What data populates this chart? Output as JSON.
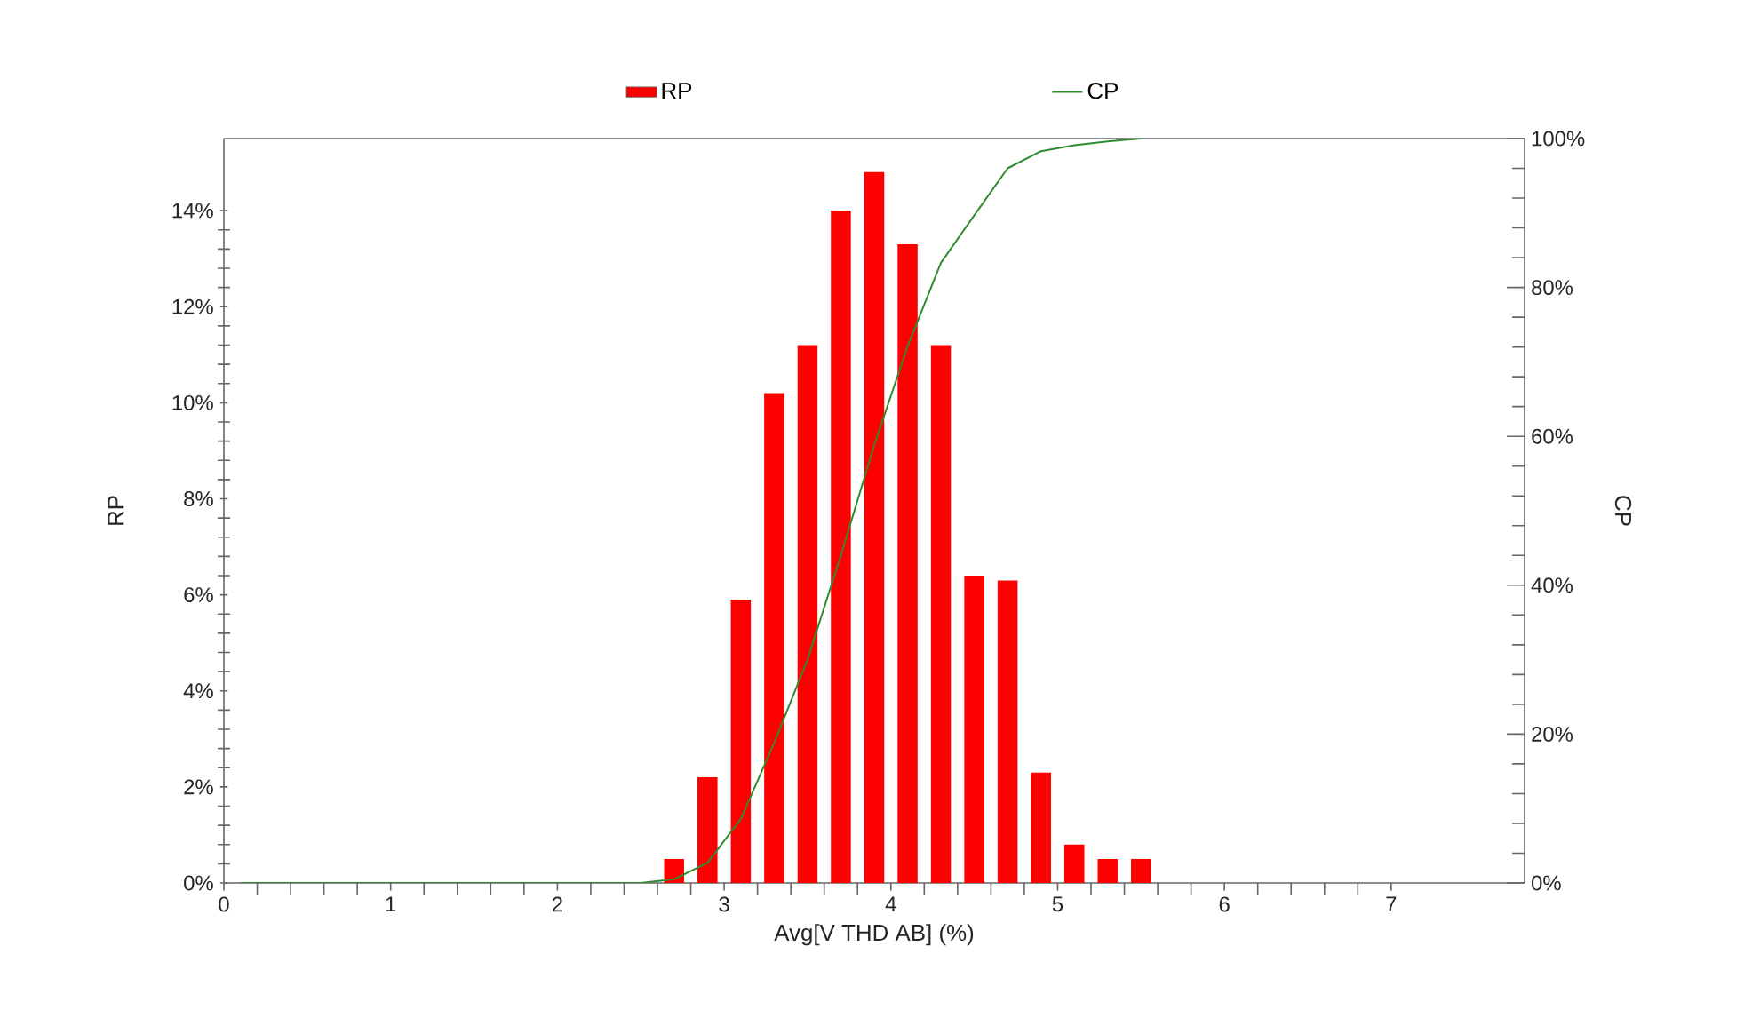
{
  "chart_data": {
    "type": "bar",
    "xlabel": "Avg[V THD AB] (%)",
    "ylabel": "RP",
    "y2label": "CP",
    "legend": "top",
    "xlim": [
      0,
      7.8
    ],
    "xticks": [
      0,
      1,
      2,
      3,
      4,
      5,
      6,
      7
    ],
    "ylim": [
      0,
      15.5
    ],
    "yticks": [
      {
        "value": 0,
        "label": "0%"
      },
      {
        "value": 2,
        "label": "2%"
      },
      {
        "value": 4,
        "label": "4%"
      },
      {
        "value": 6,
        "label": "6%"
      },
      {
        "value": 8,
        "label": "8%"
      },
      {
        "value": 10,
        "label": "10%"
      },
      {
        "value": 12,
        "label": "12%"
      },
      {
        "value": 14,
        "label": "14%"
      }
    ],
    "y2lim": [
      0,
      100
    ],
    "y2ticks": [
      {
        "value": 0,
        "label": "0%"
      },
      {
        "value": 20,
        "label": "20%"
      },
      {
        "value": 40,
        "label": "40%"
      },
      {
        "value": 60,
        "label": "60%"
      },
      {
        "value": 80,
        "label": "80%"
      },
      {
        "value": 100,
        "label": "100%"
      }
    ],
    "series": [
      {
        "name": "RP",
        "color": "#ff0000",
        "x": [
          2.7,
          2.9,
          3.1,
          3.3,
          3.5,
          3.7,
          3.9,
          4.1,
          4.3,
          4.5,
          4.7,
          4.9,
          5.1,
          5.3,
          5.5
        ],
        "values": [
          0.5,
          2.2,
          5.9,
          10.2,
          11.2,
          14.0,
          14.8,
          13.3,
          11.2,
          6.4,
          6.3,
          2.3,
          0.8,
          0.5,
          0.5
        ]
      },
      {
        "name": "CP",
        "type": "line",
        "axis": "y2",
        "color": "#2e8b2e",
        "x": [
          0.1,
          2.5,
          2.7,
          2.9,
          3.1,
          3.3,
          3.5,
          3.7,
          3.9,
          4.1,
          4.3,
          4.5,
          4.7,
          4.9,
          5.1,
          5.3,
          5.5
        ],
        "values": [
          0,
          0,
          0.5,
          2.7,
          8.6,
          18.8,
          30,
          44,
          58.8,
          72.1,
          83.3,
          89.7,
          96,
          98.3,
          99.1,
          99.6,
          100
        ]
      }
    ]
  }
}
